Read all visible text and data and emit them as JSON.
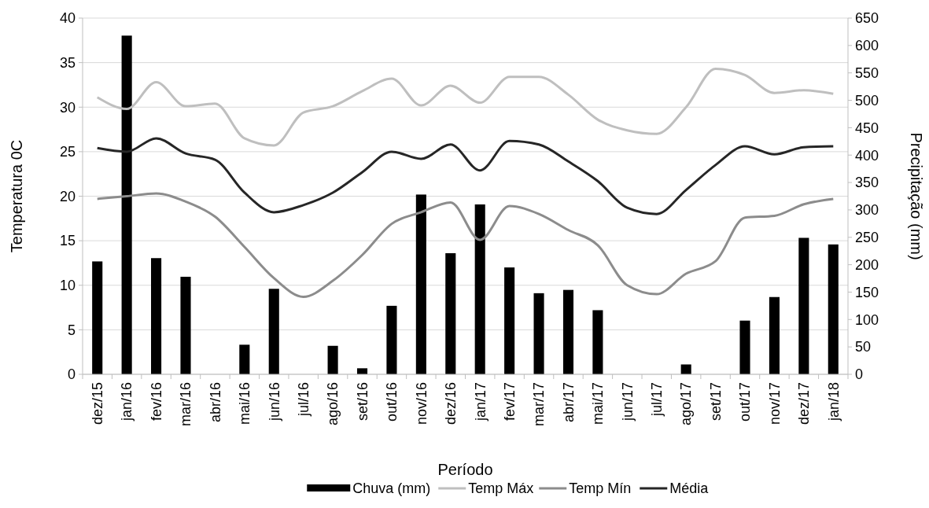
{
  "chart_data": {
    "type": "line",
    "xlabel": "Período",
    "ylabel": "Temperatura 0C",
    "y2label": "Precipitação (mm)",
    "categories": [
      "dez/15",
      "jan/16",
      "fev/16",
      "mar/16",
      "abr/16",
      "mai/16",
      "jun/16",
      "jul/16",
      "ago/16",
      "set/16",
      "out/16",
      "nov/16",
      "dez/16",
      "jan/17",
      "fev/17",
      "mar/17",
      "abr/17",
      "mai/17",
      "jun/17",
      "jul/17",
      "ago/17",
      "set/17",
      "out/17",
      "nov/17",
      "dez/17",
      "jan/18"
    ],
    "series": [
      {
        "name": "Chuva (mm)",
        "type": "bar",
        "axis": "y2",
        "color": "#000000",
        "values": [
          206,
          618,
          212,
          178,
          0,
          54,
          156,
          0,
          52,
          11,
          125,
          328,
          221,
          310,
          195,
          148,
          154,
          117,
          0,
          0,
          18,
          0,
          98,
          141,
          249,
          237
        ]
      },
      {
        "name": "Temp Máx",
        "color": "#bfbfbf",
        "values": [
          31.1,
          29.8,
          32.8,
          30.1,
          30.4,
          26.5,
          25.7,
          29.4,
          30.1,
          31.8,
          33.2,
          30.2,
          32.4,
          30.5,
          33.4,
          33.4,
          31.4,
          28.6,
          27.4,
          27.0,
          30.0,
          34.3,
          33.6,
          31.6,
          31.9,
          31.5
        ]
      },
      {
        "name": "Temp Mín",
        "color": "#8c8c8c",
        "values": [
          19.7,
          20.0,
          20.3,
          19.4,
          17.7,
          14.3,
          10.8,
          8.7,
          10.5,
          13.4,
          16.9,
          18.2,
          19.3,
          15.1,
          18.9,
          18.0,
          16.2,
          14.5,
          10.0,
          9.0,
          11.3,
          12.7,
          17.6,
          17.8,
          19.1,
          19.7
        ]
      },
      {
        "name": "Média",
        "color": "#262626",
        "values": [
          25.4,
          25.0,
          26.5,
          24.8,
          24.1,
          20.4,
          18.2,
          19.0,
          20.4,
          22.7,
          25.0,
          24.2,
          25.8,
          22.9,
          26.2,
          25.8,
          23.9,
          21.7,
          18.7,
          18.0,
          20.7,
          23.5,
          25.6,
          24.7,
          25.5,
          25.6
        ]
      }
    ],
    "ylim": [
      0,
      40
    ],
    "yticks": [
      0,
      5,
      10,
      15,
      20,
      25,
      30,
      35,
      40
    ],
    "y2lim": [
      0,
      650
    ],
    "y2ticks": [
      0,
      50,
      100,
      150,
      200,
      250,
      300,
      350,
      400,
      450,
      500,
      550,
      600,
      650
    ],
    "grid": "y",
    "legend": "bottom",
    "marker": "none",
    "line_style": "solid"
  }
}
